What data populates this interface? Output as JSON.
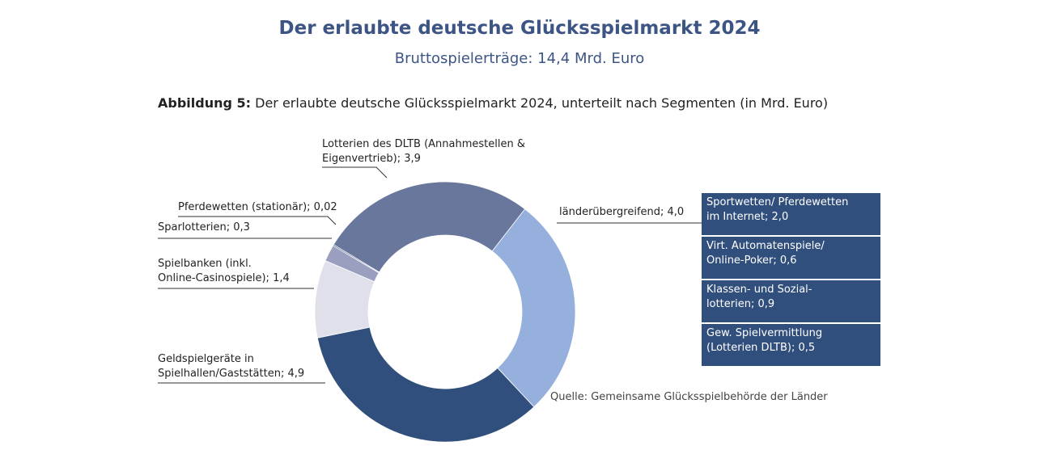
{
  "header": {
    "title": "Der erlaubte deutsche Glücksspielmarkt 2024",
    "subtitle": "Bruttospielerträge: 14,4 Mrd. Euro"
  },
  "figure_caption": {
    "prefix": "Abbildung 5:",
    "text": " Der erlaubte deutsche Glücksspielmarkt 2024, unterteilt nach Segmenten (in Mrd. Euro)"
  },
  "chart_data": {
    "type": "pie",
    "donut": true,
    "unit": "Mrd. Euro",
    "slices": [
      {
        "label": "Lotterien des DLTB (Annahmestellen & Eigenvertrieb); 3,9",
        "value": 3.9,
        "color": "#68779b"
      },
      {
        "label": "länderübergreifend; 4,0",
        "value": 4.0,
        "color": "#95b0dc"
      },
      {
        "label": "Geldspielgeräte in Spielhallen/Gaststätten; 4,9",
        "value": 4.9,
        "color": "#314f7c"
      },
      {
        "label": "Spielbanken (inkl. Online-Casinospiele); 1,4",
        "value": 1.4,
        "color": "#dfe0ea"
      },
      {
        "label": "Sparlotterien; 0,3",
        "value": 0.3,
        "color": "#9a9fbf"
      },
      {
        "label": "Pferdewetten (stationär); 0,02",
        "value": 0.02,
        "color": "#2f4e7a"
      }
    ],
    "labels": {
      "dltb": [
        "Lotterien des DLTB (Annahmestellen &",
        "Eigenvertrieb); 3,9"
      ],
      "laender": "länderübergreifend; 4,0",
      "geld": [
        "Geldspielgeräte in",
        "Spielhallen/Gaststätten; 4,9"
      ],
      "spielbanken": [
        "Spielbanken (inkl.",
        "Online-Casinospiele); 1,4"
      ],
      "spar": "Sparlotterien; 0,3",
      "pferde": "Pferdewetten (stationär); 0,02"
    },
    "breakdown_laender": [
      [
        "Sportwetten/ Pferdewetten",
        "im Internet; 2,0"
      ],
      [
        "Virt. Automatenspiele/",
        "Online-Poker; 0,6"
      ],
      [
        "Klassen- und Sozial-",
        "lotterien; 0,9"
      ],
      [
        "Gew. Spielvermittlung",
        "(Lotterien DLTB); 0,5"
      ]
    ],
    "legend_color": "#314f7c"
  },
  "source": "Quelle: Gemeinsame Glücksspielbehörde der Länder"
}
